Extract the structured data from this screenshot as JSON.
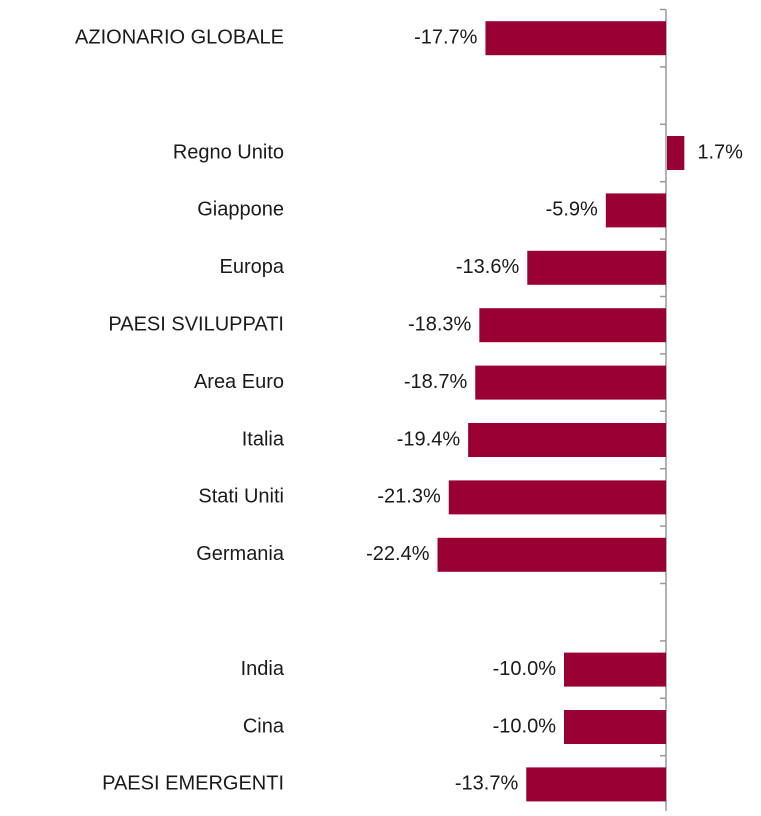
{
  "chart_data": {
    "type": "bar",
    "orientation": "horizontal",
    "color": "#990033",
    "categories": [
      "AZIONARIO GLOBALE",
      null,
      "Regno Unito",
      "Giappone",
      "Europa",
      "PAESI SVILUPPATI",
      "Area Euro",
      "Italia",
      "Stati Uniti",
      "Germania",
      null,
      "India",
      "Cina",
      "PAESI EMERGENTI"
    ],
    "values": [
      -17.7,
      null,
      1.7,
      -5.9,
      -13.6,
      -18.3,
      -18.7,
      -19.4,
      -21.3,
      -22.4,
      null,
      -10.0,
      -10.0,
      -13.7
    ],
    "value_labels": [
      "-17.7%",
      null,
      "1.7%",
      "-5.9%",
      "-13.6%",
      "-18.3%",
      "-18.7%",
      "-19.4%",
      "-21.3%",
      "-22.4%",
      null,
      "-10.0%",
      "-10.0%",
      "-13.7%"
    ]
  }
}
